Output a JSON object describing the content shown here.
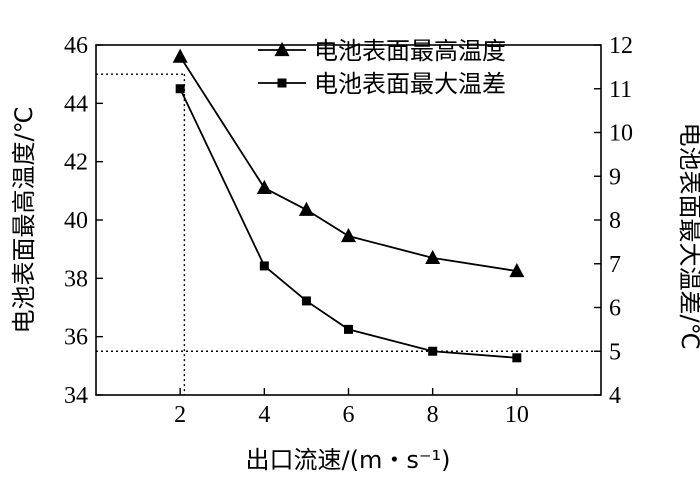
{
  "chart_data": {
    "type": "line",
    "xlabel": "出口流速/(m・s⁻¹)",
    "ylabel_left": "电池表面最高温度/℃",
    "ylabel_right": "电池表面最大温差/℃",
    "x": [
      2,
      4,
      5,
      6,
      8,
      10
    ],
    "xlim": [
      0,
      12
    ],
    "xticks": [
      2,
      4,
      6,
      8,
      10
    ],
    "ylim_left": [
      34,
      46
    ],
    "yticks_left": [
      34,
      36,
      38,
      40,
      42,
      44,
      46
    ],
    "ylim_right": [
      4,
      12
    ],
    "yticks_right": [
      4,
      5,
      6,
      7,
      8,
      9,
      10,
      11,
      12
    ],
    "series": [
      {
        "name": "电池表面最高温度",
        "axis": "left",
        "marker": "triangle",
        "values": [
          45.6,
          41.1,
          40.35,
          39.45,
          38.7,
          38.25
        ]
      },
      {
        "name": "电池表面最大温差",
        "axis": "right",
        "marker": "square",
        "values": [
          11.0,
          6.95,
          6.15,
          5.5,
          5.0,
          4.85
        ]
      }
    ],
    "reference_lines": [
      {
        "axis": "left",
        "y": 45,
        "x_end": 2.1
      },
      {
        "axis": "right",
        "y": 5
      },
      {
        "x": 2.1
      }
    ],
    "legend_position": "top-right",
    "grid": false
  }
}
